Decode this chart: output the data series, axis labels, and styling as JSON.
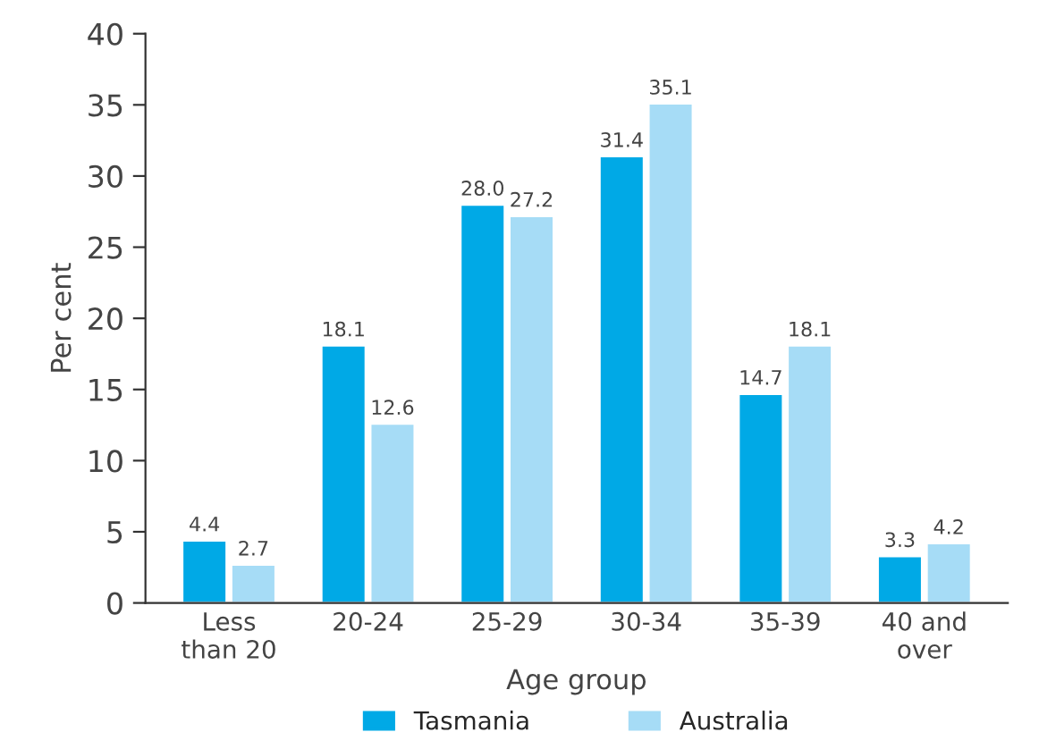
{
  "chart_data": {
    "type": "bar",
    "xlabel": "Age group",
    "ylabel": "Per cent",
    "categories": [
      "Less\nthan 20",
      "20-24",
      "25-29",
      "30-34",
      "35-39",
      "40 and\nover"
    ],
    "series": [
      {
        "name": "Tasmania",
        "color": "#00a9e6",
        "values": [
          4.4,
          18.1,
          28.0,
          31.4,
          14.7,
          3.3
        ],
        "value_labels": [
          "4.4",
          "18.1",
          "28.0",
          "31.4",
          "14.7",
          "3.3"
        ]
      },
      {
        "name": "Australia",
        "color": "#a6dcf6",
        "values": [
          2.7,
          12.6,
          27.2,
          35.1,
          18.1,
          4.2
        ],
        "value_labels": [
          "2.7",
          "12.6",
          "27.2",
          "35.1",
          "18.1",
          "4.2"
        ]
      }
    ],
    "ylim": [
      0,
      40
    ],
    "yticks": [
      0,
      5,
      10,
      15,
      20,
      25,
      30,
      35,
      40
    ],
    "grid": false,
    "legend": "bottom"
  }
}
